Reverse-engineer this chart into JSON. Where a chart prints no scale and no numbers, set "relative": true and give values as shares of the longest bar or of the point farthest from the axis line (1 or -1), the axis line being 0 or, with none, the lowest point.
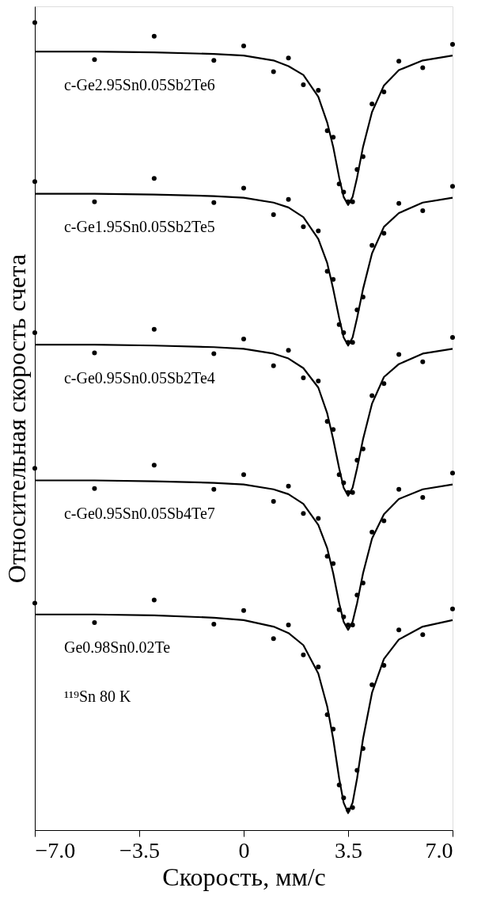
{
  "chart_data": {
    "type": "scatter",
    "relative": true,
    "xlabel": "Скорость, мм/с",
    "ylabel": "Относительная скорость счета",
    "xlim": [
      -7,
      7
    ],
    "xticks": [
      {
        "value": -7,
        "label": "−7.0"
      },
      {
        "value": -3.5,
        "label": "−3.5"
      },
      0,
      3.5,
      {
        "value": 7,
        "label": "7.0"
      }
    ],
    "x": [
      -7,
      -5,
      -3,
      -1,
      0,
      1,
      1.5,
      2,
      2.5,
      2.8,
      3.0,
      3.2,
      3.35,
      3.5,
      3.65,
      3.8,
      4.0,
      4.3,
      4.7,
      5.2,
      6,
      7
    ],
    "legend": false,
    "grid": false,
    "series": [
      {
        "name": "c-Ge2.95Sn0.05Sb2Te6",
        "type": "line",
        "marker": "none",
        "color": "#000000",
        "values": [
          0.964,
          0.964,
          0.963,
          0.961,
          0.959,
          0.953,
          0.946,
          0.935,
          0.908,
          0.876,
          0.846,
          0.808,
          0.784,
          0.774,
          0.784,
          0.808,
          0.846,
          0.889,
          0.922,
          0.941,
          0.953,
          0.959
        ]
      },
      {
        "color": "#000000",
        "values": [
          1.0,
          0.954,
          0.983,
          0.953,
          0.971,
          0.939,
          0.956,
          0.923,
          0.916,
          0.866,
          0.858,
          0.8,
          0.79,
          0.778,
          0.778,
          0.818,
          0.834,
          0.899,
          0.914,
          0.952,
          0.944,
          0.973
        ]
      },
      {
        "name": "c-Ge1.95Sn0.05Sb2Te5",
        "type": "line",
        "marker": "none",
        "color": "#000000",
        "values": [
          0.788,
          0.788,
          0.787,
          0.785,
          0.783,
          0.777,
          0.771,
          0.759,
          0.732,
          0.702,
          0.67,
          0.634,
          0.61,
          0.6,
          0.61,
          0.634,
          0.67,
          0.714,
          0.747,
          0.764,
          0.777,
          0.783
        ]
      },
      {
        "color": "#000000",
        "values": [
          0.803,
          0.778,
          0.807,
          0.777,
          0.795,
          0.762,
          0.781,
          0.747,
          0.742,
          0.692,
          0.682,
          0.626,
          0.616,
          0.604,
          0.604,
          0.644,
          0.66,
          0.724,
          0.739,
          0.776,
          0.767,
          0.797
        ]
      },
      {
        "name": "c-Ge0.95Sn0.05Sb2Te4",
        "type": "line",
        "marker": "none",
        "color": "#000000",
        "values": [
          0.601,
          0.601,
          0.6,
          0.598,
          0.596,
          0.59,
          0.584,
          0.572,
          0.548,
          0.516,
          0.484,
          0.448,
          0.424,
          0.414,
          0.424,
          0.448,
          0.484,
          0.528,
          0.561,
          0.577,
          0.59,
          0.596
        ]
      },
      {
        "color": "#000000",
        "values": [
          0.616,
          0.591,
          0.62,
          0.59,
          0.608,
          0.575,
          0.594,
          0.56,
          0.556,
          0.506,
          0.496,
          0.44,
          0.43,
          0.418,
          0.418,
          0.458,
          0.472,
          0.538,
          0.553,
          0.589,
          0.58,
          0.61
        ]
      },
      {
        "name": "c-Ge0.95Sn0.05Sb4Te7",
        "type": "line",
        "marker": "none",
        "color": "#000000",
        "values": [
          0.433,
          0.433,
          0.432,
          0.43,
          0.428,
          0.422,
          0.416,
          0.404,
          0.378,
          0.349,
          0.318,
          0.281,
          0.258,
          0.248,
          0.258,
          0.281,
          0.318,
          0.361,
          0.391,
          0.41,
          0.422,
          0.428
        ]
      },
      {
        "color": "#000000",
        "values": [
          0.448,
          0.423,
          0.452,
          0.422,
          0.44,
          0.407,
          0.426,
          0.392,
          0.386,
          0.339,
          0.33,
          0.273,
          0.264,
          0.254,
          0.254,
          0.291,
          0.306,
          0.369,
          0.383,
          0.422,
          0.412,
          0.442
        ]
      },
      {
        "name": "Ge0.98Sn0.02Te",
        "type": "line",
        "marker": "none",
        "color": "#000000",
        "values": [
          0.267,
          0.267,
          0.266,
          0.263,
          0.26,
          0.252,
          0.244,
          0.229,
          0.194,
          0.153,
          0.113,
          0.064,
          0.034,
          0.021,
          0.034,
          0.064,
          0.113,
          0.17,
          0.212,
          0.236,
          0.252,
          0.26
        ]
      },
      {
        "color": "#000000",
        "values": [
          0.281,
          0.257,
          0.285,
          0.255,
          0.272,
          0.237,
          0.254,
          0.217,
          0.202,
          0.143,
          0.125,
          0.056,
          0.04,
          0.025,
          0.028,
          0.074,
          0.101,
          0.18,
          0.204,
          0.248,
          0.242,
          0.274
        ]
      }
    ],
    "annotations": [
      "¹¹⁹Sn   80 K"
    ]
  }
}
